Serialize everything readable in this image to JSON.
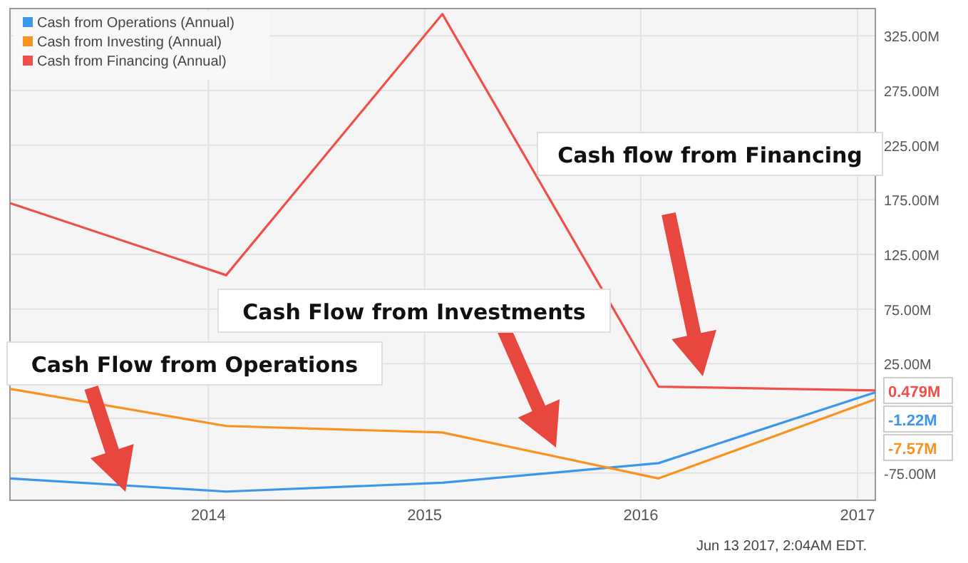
{
  "chart_data": {
    "type": "line",
    "x": [
      "2013-01-31",
      "2014-01-31",
      "2015-01-31",
      "2016-01-31",
      "2017-01-31"
    ],
    "series": [
      {
        "name": "Cash from Operations (Annual)",
        "color": "#3a97ea",
        "values": [
          -80,
          -92,
          -84,
          -66,
          -1.22
        ],
        "value_labels": [
          null,
          null,
          null,
          null,
          "-1.22M"
        ]
      },
      {
        "name": "Cash from Investing (Annual)",
        "color": "#f7931e",
        "values": [
          2,
          -32,
          -38,
          -80,
          -7.57
        ],
        "value_labels": [
          null,
          null,
          null,
          null,
          "-7.57M"
        ]
      },
      {
        "name": "Cash from Financing (Annual)",
        "color": "#f0504a",
        "values": [
          172,
          106,
          345,
          4,
          0.479
        ],
        "value_labels": [
          null,
          null,
          null,
          null,
          "0.479M"
        ]
      }
    ],
    "xlim": [
      "2013-01-31",
      "2017-01-31"
    ],
    "xticks": [
      {
        "value": "2014-01-01",
        "label": "2014"
      },
      {
        "value": "2015-01-01",
        "label": "2015"
      },
      {
        "value": "2016-01-01",
        "label": "2016"
      },
      {
        "value": "2017-01-01",
        "label": "2017"
      }
    ],
    "ylim": [
      -100,
      350
    ],
    "yticks": [
      {
        "value": -75,
        "label": "-75.00M"
      },
      {
        "value": -25,
        "label": null
      },
      {
        "value": 25,
        "label": "25.00M"
      },
      {
        "value": 75,
        "label": "75.00M"
      },
      {
        "value": 125,
        "label": "125.00M"
      },
      {
        "value": 175,
        "label": "175.00M"
      },
      {
        "value": 225,
        "label": "225.00M"
      },
      {
        "value": 275,
        "label": "275.00M"
      },
      {
        "value": 325,
        "label": "325.00M"
      }
    ],
    "grid": true,
    "legend": "top left",
    "marker": "none",
    "line_style": "solid",
    "annotations": [
      "Cash flow from Financing",
      "Cash Flow from Investments",
      "Cash Flow from Operations",
      "Jun 13 2017, 2:04AM EDT."
    ]
  }
}
